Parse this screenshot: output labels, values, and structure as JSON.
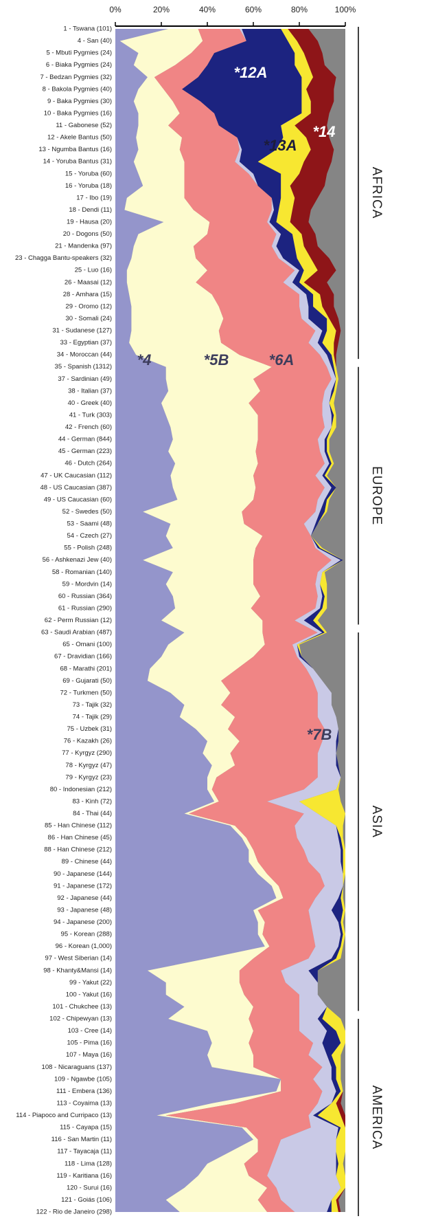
{
  "chart_data": {
    "type": "stacked-area-horizontal",
    "categories": [
      "1 - Tswana (101)",
      "4 - San (40)",
      "5 - Mbuti Pygmies (24)",
      "6 - Biaka Pygmies (24)",
      "7 - Bedzan Pygmies (32)",
      "8 - Bakola Pygmies (40)",
      "9 - Baka Pygmies (30)",
      "10 - Baka Pygmies (16)",
      "11 - Gabonese (52)",
      "12 - Akele Bantus (50)",
      "13 - Ngumba Bantus (16)",
      "14 - Yoruba Bantus (31)",
      "15 - Yoruba (60)",
      "16 - Yoruba (18)",
      "17 - Ibo (19)",
      "18 - Dendi (11)",
      "19 - Hausa (20)",
      "20 - Dogons (50)",
      "21 - Mandenka (97)",
      "23 - Chagga Bantu-speakers (32)",
      "25 - Luo (16)",
      "26 - Maasai (12)",
      "28 - Amhara (15)",
      "29 - Oromo (12)",
      "30 - Somali (24)",
      "31 - Sudanese (127)",
      "33 - Egyptian (37)",
      "34 - Moroccan (44)",
      "35 - Spanish (1312)",
      "37 - Sardinian (49)",
      "38 - Italian (37)",
      "40 - Greek (40)",
      "41 - Turk (303)",
      "42 - French (60)",
      "44 - German (844)",
      "45 - German (223)",
      "46 - Dutch (264)",
      "47 - UK Caucasian (112)",
      "48 - US Caucasian (387)",
      "49 - US Caucasian (60)",
      "52 - Swedes (50)",
      "53 - Saami (48)",
      "54 - Czech (27)",
      "55 - Polish (248)",
      "56 - Ashkenazi Jew (40)",
      "58 - Romanian (140)",
      "59 - Mordvin (14)",
      "60 - Russian (364)",
      "61 - Russian (290)",
      "62 - Perm Russian (12)",
      "63 - Saudi Arabian (487)",
      "65 - Omani (100)",
      "67 - Dravidian (166)",
      "68 - Marathi (201)",
      "69 - Gujarati (50)",
      "72 - Turkmen (50)",
      "73 - Tajik (32)",
      "74 - Tajik (29)",
      "75 - Uzbek (31)",
      "76 - Kazakh (26)",
      "77 - Kyrgyz (290)",
      "78 - Kyrgyz (47)",
      "79 - Kyrgyz (23)",
      "80 - Indonesian (212)",
      "83 - Kinh (72)",
      "84 - Thai (44)",
      "85 - Han Chinese (112)",
      "86 - Han Chinese (45)",
      "88 - Han Chinese (212)",
      "89 - Chinese (44)",
      "90 - Japanese (144)",
      "91 - Japanese (172)",
      "92 - Japanese (44)",
      "93 - Japanese (48)",
      "94 - Japanese (200)",
      "95 - Korean (288)",
      "96 - Korean (1,000)",
      "97 - West Siberian (14)",
      "98 - Khanty&Mansi (14)",
      "99 - Yakut (22)",
      "100 - Yakut (16)",
      "101 - Chukchee (13)",
      "102 - Chipewyan (13)",
      "103 - Cree (14)",
      "105 - Pima (16)",
      "107 - Maya (16)",
      "108 - Nicaraguans (137)",
      "109 - Ngawbe (105)",
      "111 - Embera (136)",
      "113 - Coyaima (13)",
      "114 - Piapoco and Curripaco (13)",
      "115 - Cayapa (15)",
      "116 - San Martin (11)",
      "117 - Tayacaja (11)",
      "118 - Lima (128)",
      "119 - Karitiana (16)",
      "120 - Surui (16)",
      "121 - Goiás (106)",
      "122 - Rio de Janeiro (298)"
    ],
    "series": [
      {
        "name": "*4",
        "color": "#9495cb",
        "values": [
          23,
          2,
          10,
          8,
          14,
          10,
          8,
          10,
          10,
          9,
          10,
          8,
          10,
          12,
          5,
          4,
          21,
          10,
          8,
          7,
          5,
          5,
          6,
          7,
          7,
          7,
          6,
          9,
          22,
          22,
          23,
          20,
          22,
          24,
          25,
          23,
          26,
          24,
          25,
          27,
          12,
          24,
          22,
          25,
          12,
          25,
          22,
          25,
          26,
          20,
          30,
          23,
          20,
          15,
          14,
          24,
          30,
          28,
          35,
          40,
          38,
          42,
          40,
          40,
          43,
          30,
          50,
          55,
          58,
          58,
          62,
          68,
          70,
          60,
          62,
          62,
          65,
          40,
          14,
          22,
          22,
          30,
          23,
          40,
          42,
          40,
          42,
          72,
          70,
          42,
          18,
          55,
          60,
          50,
          40,
          36,
          30,
          22,
          28
        ]
      },
      {
        "name": "*5B",
        "color": "#fdfbcf",
        "values": [
          13,
          36,
          23,
          18,
          3,
          11,
          17,
          18,
          13,
          20,
          18,
          22,
          20,
          18,
          25,
          30,
          20,
          30,
          26,
          28,
          35,
          30,
          36,
          38,
          40,
          38,
          40,
          45,
          46,
          38,
          40,
          38,
          40,
          38,
          37,
          38,
          36,
          36,
          36,
          33,
          43,
          32,
          42,
          36,
          48,
          35,
          38,
          38,
          33,
          44,
          34,
          42,
          40,
          38,
          32,
          26,
          16,
          24,
          14,
          14,
          12,
          10,
          4,
          2,
          2,
          2,
          2,
          2,
          2,
          4,
          4,
          3,
          3,
          2,
          3,
          2,
          2,
          20,
          40,
          32,
          34,
          30,
          35,
          20,
          16,
          20,
          18,
          0,
          2,
          10,
          4,
          2,
          2,
          12,
          16,
          22,
          36,
          40,
          38
        ]
      },
      {
        "name": "*6A",
        "color": "#f08585",
        "values": [
          18,
          19,
          10,
          14,
          19,
          8,
          12,
          15,
          22,
          24,
          26,
          22,
          28,
          32,
          38,
          34,
          25,
          30,
          34,
          36,
          38,
          38,
          38,
          35,
          34,
          42,
          38,
          35,
          24,
          34,
          28,
          32,
          28,
          29,
          26,
          28,
          29,
          27,
          30,
          28,
          32,
          26,
          21,
          26,
          34,
          28,
          27,
          25,
          28,
          14,
          24,
          12,
          19,
          30,
          40,
          38,
          42,
          36,
          42,
          36,
          38,
          36,
          44,
          40,
          21,
          50,
          26,
          22,
          22,
          22,
          23,
          20,
          14,
          22,
          20,
          22,
          20,
          24,
          18,
          20,
          24,
          20,
          22,
          20,
          28,
          24,
          30,
          14,
          18,
          36,
          62,
          28,
          10,
          8,
          12,
          8,
          4,
          10,
          12
        ]
      },
      {
        "name": "*7B",
        "color": "#c9c9e6",
        "values": [
          1,
          0,
          0,
          0,
          0,
          0,
          0,
          0,
          0,
          0,
          1,
          2,
          2,
          0,
          0,
          1,
          1,
          2,
          2,
          2,
          2,
          4,
          3,
          4,
          3,
          3,
          4,
          3,
          2,
          2,
          3,
          3,
          4,
          3,
          3,
          2,
          2,
          3,
          3,
          3,
          2,
          5,
          0,
          1,
          4,
          2,
          2,
          2,
          2,
          4,
          2,
          2,
          1,
          3,
          4,
          6,
          6,
          8,
          6,
          6,
          8,
          8,
          10,
          14,
          14,
          6,
          18,
          18,
          16,
          14,
          10,
          8,
          10,
          10,
          12,
          12,
          10,
          10,
          12,
          14,
          8,
          12,
          8,
          12,
          4,
          8,
          4,
          8,
          6,
          6,
          2,
          12,
          24,
          26,
          28,
          30,
          28,
          22,
          14
        ]
      },
      {
        "name": "*12A",
        "color": "#1c2380",
        "values": [
          17,
          18,
          35,
          38,
          45,
          52,
          44,
          38,
          27,
          20,
          15,
          8,
          12,
          10,
          4,
          2,
          3,
          5,
          8,
          6,
          2,
          3,
          3,
          2,
          8,
          2,
          2,
          2,
          1,
          0,
          1,
          0,
          1,
          0,
          1,
          1,
          1,
          1,
          2,
          1,
          2,
          1,
          0,
          1,
          1,
          0,
          0,
          1,
          1,
          4,
          1,
          0,
          1,
          0,
          0,
          0,
          0,
          0,
          0,
          1,
          0,
          1,
          0,
          0,
          0,
          0,
          0,
          1,
          1,
          1,
          0,
          0,
          1,
          5,
          1,
          1,
          1,
          2,
          4,
          0,
          0,
          0,
          2,
          4,
          8,
          2,
          2,
          2,
          2,
          0,
          2,
          1,
          0,
          0,
          1,
          0,
          0,
          0,
          2
        ]
      },
      {
        "name": "*13A",
        "color": "#f7e731",
        "values": [
          3,
          4,
          4,
          6,
          5,
          2,
          4,
          4,
          6,
          10,
          15,
          20,
          8,
          4,
          6,
          6,
          6,
          4,
          4,
          6,
          6,
          2,
          3,
          4,
          1,
          4,
          5,
          1,
          1,
          1,
          1,
          2,
          1,
          2,
          1,
          1,
          1,
          1,
          0,
          1,
          1,
          0,
          0,
          1,
          0,
          1,
          3,
          1,
          2,
          2,
          1,
          1,
          0,
          0,
          0,
          0,
          0,
          0,
          0,
          0,
          0,
          0,
          0,
          1,
          18,
          12,
          3,
          1,
          1,
          1,
          1,
          0,
          1,
          1,
          1,
          1,
          1,
          2,
          0,
          0,
          0,
          0,
          8,
          4,
          2,
          4,
          2,
          2,
          1,
          2,
          10,
          2,
          4,
          4,
          2,
          4,
          2,
          2,
          3
        ]
      },
      {
        "name": "*14",
        "color": "#8e1518",
        "values": [
          9,
          9,
          8,
          7,
          10,
          12,
          10,
          8,
          14,
          10,
          10,
          12,
          12,
          15,
          10,
          8,
          8,
          6,
          6,
          8,
          8,
          10,
          6,
          5,
          4,
          2,
          2,
          1,
          0,
          0,
          0,
          0,
          0,
          0,
          0,
          0,
          0,
          0,
          0,
          0,
          0,
          0,
          0,
          0,
          0,
          0,
          0,
          0,
          0,
          0,
          0,
          0,
          0,
          0,
          0,
          0,
          0,
          0,
          0,
          0,
          0,
          0,
          0,
          0,
          0,
          0,
          0,
          0,
          0,
          0,
          0,
          0,
          0,
          0,
          0,
          0,
          0,
          0,
          0,
          0,
          0,
          0,
          0,
          0,
          0,
          0,
          0,
          0,
          0,
          2,
          2,
          0,
          0,
          0,
          0,
          0,
          0,
          1,
          1
        ]
      }
    ],
    "xlim": [
      0,
      100
    ],
    "xticks": [
      {
        "value": 0,
        "label": "0%"
      },
      {
        "value": 20,
        "label": "20%"
      },
      {
        "value": 40,
        "label": "40%"
      },
      {
        "value": 60,
        "label": "60%"
      },
      {
        "value": 80,
        "label": "80%"
      },
      {
        "value": 100,
        "label": "100%"
      }
    ],
    "regions": [
      "AFRICA",
      "EUROPE",
      "ASIA",
      "AMERICA"
    ]
  }
}
